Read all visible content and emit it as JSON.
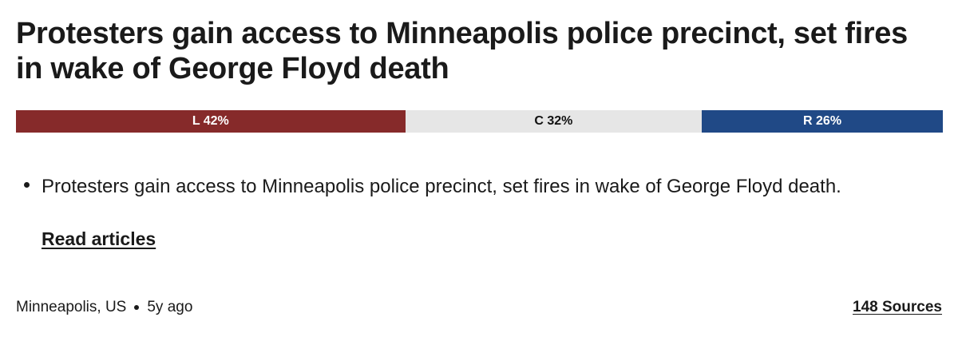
{
  "story": {
    "headline": "Protesters gain access to Minneapolis police precinct, set fires in wake of George Floyd death",
    "summary_bullet": "Protesters gain access to Minneapolis police precinct, set fires in wake of George Floyd death.",
    "read_articles_label": "Read articles",
    "location": "Minneapolis, US",
    "age": "5y ago",
    "sources_label": "148 Sources"
  },
  "bias": {
    "segments": [
      {
        "key": "left",
        "label": "L 42%",
        "percent": 42,
        "color": "#862a2a"
      },
      {
        "key": "center",
        "label": "C 32%",
        "percent": 32,
        "color": "#e6e6e6"
      },
      {
        "key": "right",
        "label": "R 26%",
        "percent": 26,
        "color": "#204986"
      }
    ]
  }
}
